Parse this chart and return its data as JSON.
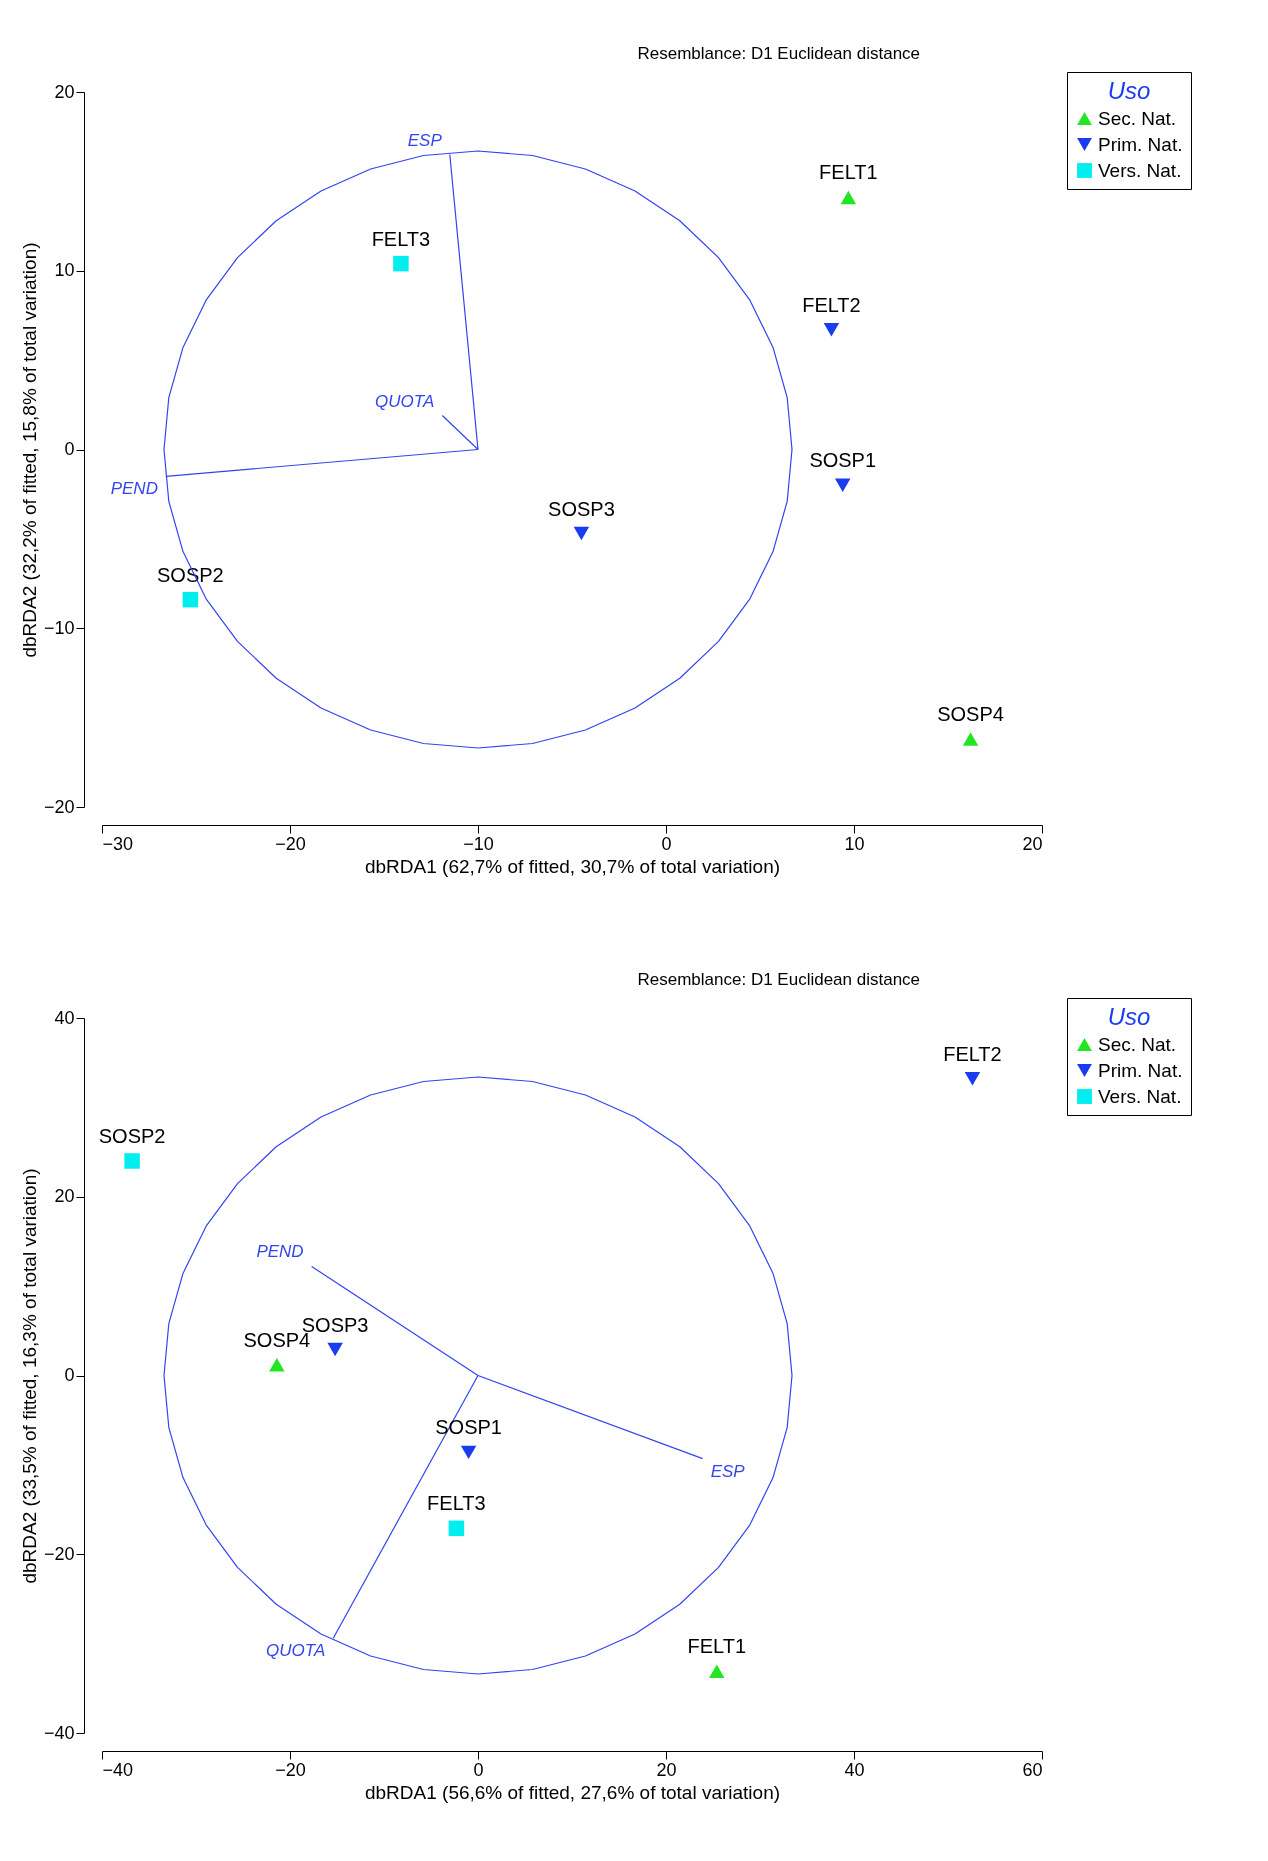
{
  "chart_data": [
    {
      "type": "scatter",
      "xlabel": "dbRDA1 (62,7% of fitted, 30,7% of total variation)",
      "ylabel": "dbRDA2 (32,2% of fitted, 15,8% of total variation)",
      "legend_title": "Uso",
      "legend": "top right",
      "grid": false,
      "xlim": [
        -30,
        20
      ],
      "xticks": [
        -30,
        -20,
        -10,
        0,
        10,
        20
      ],
      "ylim": [
        -20,
        20
      ],
      "yticks": [
        -20,
        -10,
        0,
        10,
        20
      ],
      "series": [
        {
          "name": "Sec. Nat.",
          "type": "scatter",
          "marker": "triangle",
          "color": "#22e622",
          "x": [
            9.7,
            16.2
          ],
          "values": [
            14.1,
            -16.2
          ]
        },
        {
          "name": "Prim. Nat.",
          "type": "scatter",
          "marker": "triangle-down",
          "color": "#1a3cf0",
          "x": [
            8.8,
            9.4,
            -4.5
          ],
          "values": [
            6.7,
            -2.0,
            -4.7
          ]
        },
        {
          "name": "Vers. Nat.",
          "type": "scatter",
          "marker": "square",
          "color": "#00eeee",
          "x": [
            -14.1,
            -25.3
          ],
          "values": [
            10.4,
            -8.4
          ]
        },
        {
          "name": "ESP",
          "type": "line",
          "color": "#3344ee",
          "x": [
            -10,
            -11.5
          ],
          "values": [
            0,
            16.5
          ]
        },
        {
          "name": "PEND",
          "type": "line",
          "color": "#3344ee",
          "x": [
            -26.6,
            -10
          ],
          "values": [
            -1.5,
            0
          ]
        },
        {
          "name": "QUOTA",
          "type": "line",
          "color": "#3344ee",
          "x": [
            -11.9,
            -10
          ],
          "values": [
            1.9,
            0
          ]
        }
      ],
      "annotations": [
        "Resemblance: D1 Euclidean distance",
        {
          "text": "FELT1",
          "x": 9.7,
          "y": 14.1
        },
        {
          "text": "SOSP4",
          "x": 16.2,
          "y": -16.2
        },
        {
          "text": "FELT2",
          "x": 8.8,
          "y": 6.7
        },
        {
          "text": "SOSP1",
          "x": 9.4,
          "y": -2.0
        },
        {
          "text": "SOSP3",
          "x": -4.5,
          "y": -4.7
        },
        {
          "text": "FELT3",
          "x": -14.1,
          "y": 10.4
        },
        {
          "text": "SOSP2",
          "x": -25.3,
          "y": -8.4
        }
      ]
    },
    {
      "type": "scatter",
      "xlabel": "dbRDA1 (56,6% of fitted, 27,6% of total variation)",
      "ylabel": "dbRDA2 (33,5% of fitted, 16,3% of total variation)",
      "legend_title": "Uso",
      "legend": "top right",
      "grid": false,
      "xlim": [
        -40,
        60
      ],
      "xticks": [
        -40,
        -20,
        0,
        20,
        40,
        60
      ],
      "ylim": [
        -40,
        40
      ],
      "yticks": [
        -40,
        -20,
        0,
        20,
        40
      ],
      "series": [
        {
          "name": "Sec. Nat.",
          "type": "scatter",
          "marker": "triangle",
          "color": "#22e622",
          "x": [
            -21.4,
            25.4
          ],
          "values": [
            1.2,
            -33.1
          ]
        },
        {
          "name": "Prim. Nat.",
          "type": "scatter",
          "marker": "triangle-down",
          "color": "#1a3cf0",
          "x": [
            52.6,
            -15.2,
            -1.0
          ],
          "values": [
            33.2,
            2.9,
            -8.6
          ]
        },
        {
          "name": "Vers. Nat.",
          "type": "scatter",
          "marker": "square",
          "color": "#00eeee",
          "x": [
            -36.8,
            -2.3
          ],
          "values": [
            24.0,
            -17.1
          ]
        },
        {
          "name": "PEND",
          "type": "line",
          "color": "#3344ee",
          "x": [
            -17.7,
            0
          ],
          "values": [
            12.2,
            0
          ]
        },
        {
          "name": "ESP",
          "type": "line",
          "color": "#3344ee",
          "x": [
            0,
            23.9
          ],
          "values": [
            0,
            -9.3
          ]
        },
        {
          "name": "QUOTA",
          "type": "line",
          "color": "#3344ee",
          "x": [
            -15.4,
            0
          ],
          "values": [
            -29.4,
            0
          ]
        }
      ],
      "annotations": [
        "Resemblance: D1 Euclidean distance",
        {
          "text": "FELT2",
          "x": 52.6,
          "y": 33.2
        },
        {
          "text": "SOSP2",
          "x": -36.8,
          "y": 24.0
        },
        {
          "text": "SOSP3",
          "x": -15.2,
          "y": 2.9
        },
        {
          "text": "SOSP4",
          "x": -21.4,
          "y": 1.2
        },
        {
          "text": "SOSP1",
          "x": -1.0,
          "y": -8.6
        },
        {
          "text": "FELT3",
          "x": -2.3,
          "y": -17.1
        },
        {
          "text": "FELT1",
          "x": 25.4,
          "y": -33.1
        }
      ]
    }
  ]
}
